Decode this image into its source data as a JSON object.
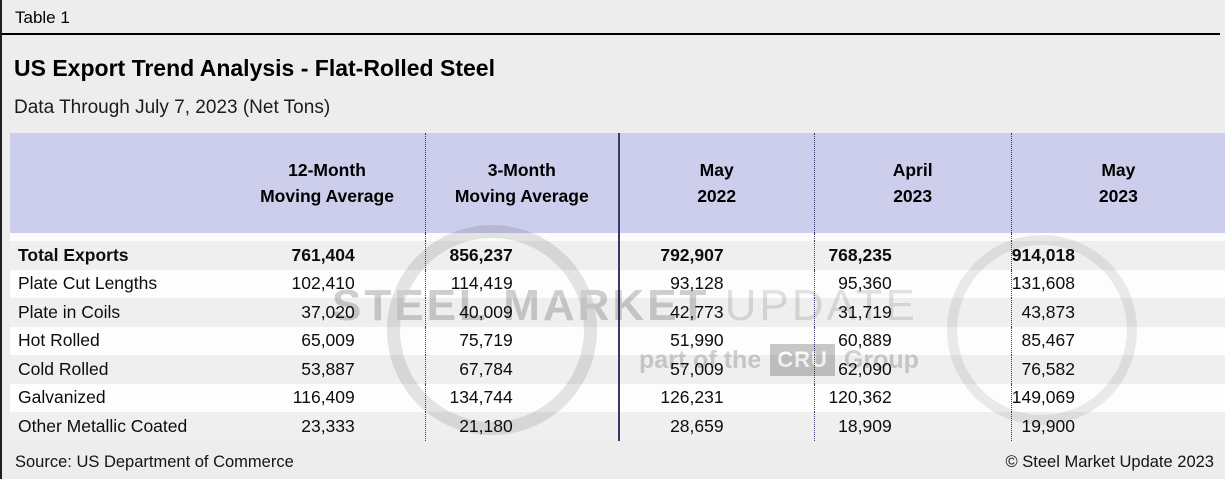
{
  "window": {
    "table_label": "Table 1"
  },
  "header": {
    "title": "US Export Trend Analysis - Flat-Rolled Steel",
    "subtitle": "Data Through July 7, 2023 (Net Tons)"
  },
  "table": {
    "columns": [
      {
        "line1": "12-Month",
        "line2": "Moving Average"
      },
      {
        "line1": "3-Month",
        "line2": "Moving Average"
      },
      {
        "line1": "May",
        "line2": "2022"
      },
      {
        "line1": "April",
        "line2": "2023"
      },
      {
        "line1": "May",
        "line2": "2023"
      }
    ],
    "rows": [
      {
        "label": "Total Exports",
        "values": [
          "761,404",
          "856,237",
          "792,907",
          "768,235",
          "914,018"
        ]
      },
      {
        "label": "Plate Cut Lengths",
        "values": [
          "102,410",
          "114,419",
          "93,128",
          "95,360",
          "131,608"
        ]
      },
      {
        "label": "Plate in Coils",
        "values": [
          "37,020",
          "40,009",
          "42,773",
          "31,719",
          "43,873"
        ]
      },
      {
        "label": "Hot Rolled",
        "values": [
          "65,009",
          "75,719",
          "51,990",
          "60,889",
          "85,467"
        ]
      },
      {
        "label": "Cold Rolled",
        "values": [
          "53,887",
          "67,784",
          "57,009",
          "62,090",
          "76,582"
        ]
      },
      {
        "label": "Galvanized",
        "values": [
          "116,409",
          "134,744",
          "126,231",
          "120,362",
          "149,069"
        ]
      },
      {
        "label": "Other Metallic Coated",
        "values": [
          "23,333",
          "21,180",
          "28,659",
          "18,909",
          "19,900"
        ]
      }
    ]
  },
  "footer": {
    "source": "Source: US Department of Commerce",
    "copyright": "© Steel Market Update 2023"
  },
  "watermark": {
    "brand_bold": "STEEL MARKET ",
    "brand_light": "UPDATE",
    "tagline_prefix": "part of the",
    "tagline_box": "CRU",
    "tagline_suffix": "Group"
  },
  "colors": {
    "header_bg": "#cdcdec",
    "row_alt_bg": "#efefef",
    "row_bg": "#fdfdfd",
    "divider": "#3a3a68",
    "page_bg": "#ededed",
    "rule": "#000000"
  },
  "chart_data": {
    "type": "table",
    "title": "US Export Trend Analysis - Flat-Rolled Steel",
    "subtitle": "Data Through July 7, 2023 (Net Tons)",
    "categories": [
      "Total Exports",
      "Plate Cut Lengths",
      "Plate in Coils",
      "Hot Rolled",
      "Cold Rolled",
      "Galvanized",
      "Other Metallic Coated"
    ],
    "series": [
      {
        "name": "12-Month Moving Average",
        "values": [
          761404,
          102410,
          37020,
          65009,
          53887,
          116409,
          23333
        ]
      },
      {
        "name": "3-Month Moving Average",
        "values": [
          856237,
          114419,
          40009,
          75719,
          67784,
          134744,
          21180
        ]
      },
      {
        "name": "May 2022",
        "values": [
          792907,
          93128,
          42773,
          51990,
          57009,
          126231,
          28659
        ]
      },
      {
        "name": "April 2023",
        "values": [
          768235,
          95360,
          31719,
          60889,
          62090,
          120362,
          18909
        ]
      },
      {
        "name": "May 2023",
        "values": [
          914018,
          131608,
          43873,
          85467,
          76582,
          149069,
          19900
        ]
      }
    ],
    "units": "Net Tons",
    "source": "US Department of Commerce"
  }
}
